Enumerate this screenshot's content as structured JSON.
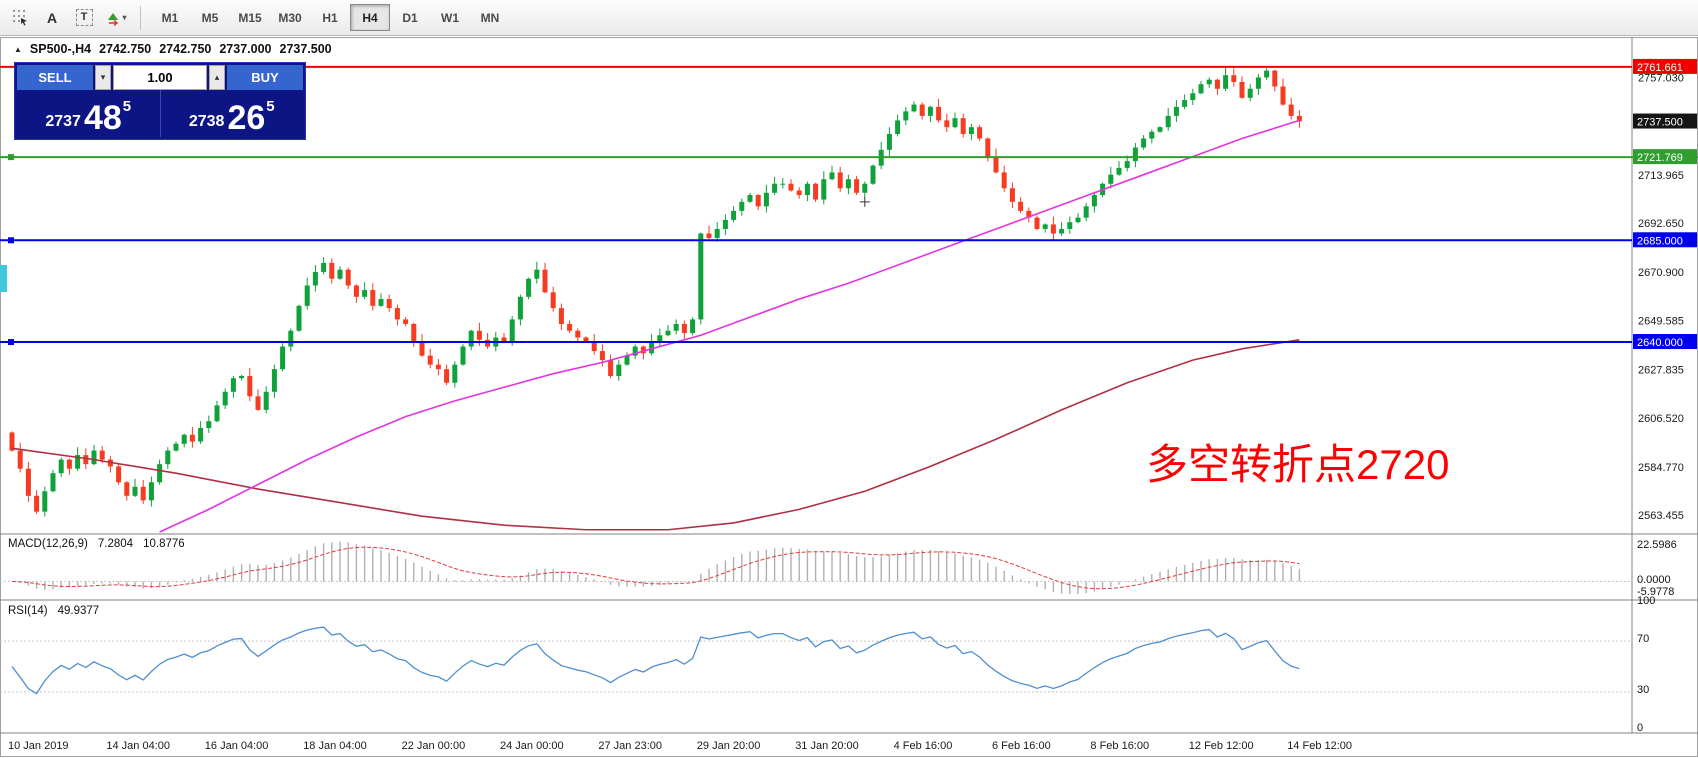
{
  "toolbar": {
    "tool_a": "A",
    "tool_t": "T",
    "dropdown_caret": "▾",
    "timeframes": [
      "M1",
      "M5",
      "M15",
      "M30",
      "H1",
      "H4",
      "D1",
      "W1",
      "MN"
    ],
    "active": "H4"
  },
  "header": {
    "symbol": "SP500-,H4",
    "open": "2742.750",
    "high": "2742.750",
    "low": "2737.000",
    "close": "2737.500"
  },
  "trade_widget": {
    "sell_label": "SELL",
    "buy_label": "BUY",
    "volume": "1.00",
    "icons": {
      "caret_down": "▾",
      "caret_up": "▴"
    },
    "bid": {
      "prefix": "2737",
      "big": "48",
      "sup": "5"
    },
    "ask": {
      "prefix": "2738",
      "big": "26",
      "sup": "5"
    }
  },
  "annotation": {
    "text": "多空转折点2720",
    "color": "#ff0000"
  },
  "colors": {
    "widget_navy": "#0d1585",
    "widget_button_blue": "#3566cf",
    "candle_up": "#0fa13a",
    "candle_down": "#f53b20",
    "ma_fast_magenta": "#e135e1",
    "ma_slow_darkred": "#b03042",
    "hline_red": "#f00000",
    "hline_green": "#2f9e2f",
    "hline_blue": "#0000ee",
    "rsi_blue": "#4f8fd0"
  },
  "chart_data": {
    "type": "candlestick",
    "symbol": "SP500-",
    "timeframe": "H4",
    "first_open": 2600,
    "closes": [
      2592,
      2584,
      2572,
      2565,
      2574,
      2582,
      2588,
      2584,
      2590,
      2586,
      2592,
      2588,
      2585,
      2578,
      2572,
      2576,
      2570,
      2578,
      2586,
      2592,
      2595,
      2599,
      2596,
      2602,
      2605,
      2612,
      2618,
      2624,
      2625,
      2616,
      2610,
      2618,
      2628,
      2638,
      2645,
      2656,
      2665,
      2671,
      2675,
      2668,
      2672,
      2665,
      2660,
      2663,
      2656,
      2659,
      2655,
      2650,
      2648,
      2640,
      2634,
      2630,
      2628,
      2622,
      2630,
      2638,
      2645,
      2641,
      2638,
      2642,
      2640,
      2650,
      2660,
      2668,
      2672,
      2662,
      2655,
      2648,
      2645,
      2642,
      2640,
      2636,
      2632,
      2625,
      2630,
      2634,
      2638,
      2635,
      2640,
      2643,
      2645,
      2648,
      2644,
      2650,
      2688,
      2686,
      2690,
      2694,
      2698,
      2702,
      2705,
      2700,
      2706,
      2710,
      2710,
      2707,
      2705,
      2710,
      2703,
      2712,
      2715,
      2708,
      2712,
      2706,
      2710,
      2718,
      2725,
      2732,
      2738,
      2742,
      2745,
      2740,
      2744,
      2738,
      2735,
      2739,
      2732,
      2735,
      2730,
      2722,
      2715,
      2708,
      2702,
      2698,
      2695,
      2690,
      2692,
      2688,
      2690,
      2693,
      2695,
      2700,
      2705,
      2710,
      2714,
      2717,
      2720,
      2726,
      2730,
      2733,
      2735,
      2740,
      2744,
      2747,
      2750,
      2754,
      2756,
      2752,
      2758,
      2755,
      2748,
      2752,
      2757,
      2760,
      2753,
      2745,
      2740,
      2737.5
    ],
    "up_color": "#0fa13a",
    "down_color": "#f53b20",
    "price_axis": {
      "max": 2774,
      "min": 2556,
      "ticks": [
        "2757.030",
        "2713.965",
        "2692.650",
        "2670.900",
        "2649.585",
        "2627.835",
        "2606.520",
        "2584.770",
        "2563.455"
      ]
    },
    "hlines": [
      {
        "price": 2761.661,
        "badge": "2761.661",
        "color": "#f00000",
        "line": true,
        "full": false,
        "handle": false
      },
      {
        "price": 2737.5,
        "badge": "2737.500",
        "color": "#151515",
        "line": false,
        "full": false,
        "handle": false
      },
      {
        "price": 2721.769,
        "badge": "2721.769",
        "color": "#2f9e2f",
        "line": true,
        "full": true,
        "handle": true
      },
      {
        "price": 2685.0,
        "badge": "2685.000",
        "color": "#0000ee",
        "line": true,
        "full": false,
        "handle": true
      },
      {
        "price": 2640.0,
        "badge": "2640.000",
        "color": "#0000ee",
        "line": true,
        "full": false,
        "handle": true
      }
    ],
    "ma_fast": {
      "color": "#e135e1",
      "points": [
        [
          18,
          2556
        ],
        [
          24,
          2566
        ],
        [
          30,
          2577
        ],
        [
          36,
          2588
        ],
        [
          42,
          2598
        ],
        [
          48,
          2607
        ],
        [
          54,
          2614
        ],
        [
          60,
          2620
        ],
        [
          66,
          2626
        ],
        [
          72,
          2631
        ],
        [
          78,
          2637
        ],
        [
          84,
          2643
        ],
        [
          90,
          2651
        ],
        [
          96,
          2659
        ],
        [
          102,
          2666
        ],
        [
          108,
          2674
        ],
        [
          114,
          2682
        ],
        [
          120,
          2690
        ],
        [
          126,
          2698
        ],
        [
          132,
          2706
        ],
        [
          138,
          2714
        ],
        [
          144,
          2722
        ],
        [
          150,
          2730
        ],
        [
          157,
          2738
        ]
      ]
    },
    "ma_slow": {
      "color": "#b03042",
      "points": [
        [
          0,
          2593
        ],
        [
          10,
          2588
        ],
        [
          20,
          2582
        ],
        [
          30,
          2575
        ],
        [
          40,
          2569
        ],
        [
          50,
          2563
        ],
        [
          60,
          2559
        ],
        [
          70,
          2557
        ],
        [
          80,
          2557
        ],
        [
          88,
          2560
        ],
        [
          96,
          2566
        ],
        [
          104,
          2574
        ],
        [
          112,
          2585
        ],
        [
          120,
          2597
        ],
        [
          128,
          2610
        ],
        [
          136,
          2622
        ],
        [
          144,
          2632
        ],
        [
          150,
          2637
        ],
        [
          157,
          2641
        ]
      ]
    },
    "time_labels": [
      {
        "i": 0,
        "label": "10 Jan 2019"
      },
      {
        "i": 12,
        "label": "14 Jan 04:00"
      },
      {
        "i": 24,
        "label": "16 Jan 04:00"
      },
      {
        "i": 36,
        "label": "18 Jan 04:00"
      },
      {
        "i": 48,
        "label": "22 Jan 00:00"
      },
      {
        "i": 60,
        "label": "24 Jan 00:00"
      },
      {
        "i": 72,
        "label": "27 Jan 23:00"
      },
      {
        "i": 84,
        "label": "29 Jan 20:00"
      },
      {
        "i": 96,
        "label": "31 Jan 20:00"
      },
      {
        "i": 108,
        "label": "4 Feb 16:00"
      },
      {
        "i": 120,
        "label": "6 Feb 16:00"
      },
      {
        "i": 132,
        "label": "8 Feb 16:00"
      },
      {
        "i": 144,
        "label": "12 Feb 12:00"
      },
      {
        "i": 156,
        "label": "14 Feb 12:00"
      }
    ],
    "indicators": {
      "macd": {
        "label": "MACD(12,26,9)",
        "value_main": "7.2804",
        "value_signal": "10.8776",
        "fast": 12,
        "slow": 26,
        "signal": 9,
        "axis": {
          "max_label": "22.5986",
          "zero_label": "0.0000",
          "min_label": "-5.9778",
          "vmax": 23,
          "vmin": -8
        },
        "hist_color": "#b0b0b0",
        "signal_color": "#e23b3b"
      },
      "rsi": {
        "label": "RSI(14)",
        "value": "49.9377",
        "period": 14,
        "color": "#4f8fd0",
        "levels": [
          "100",
          "70",
          "30",
          "0"
        ],
        "level_lines": [
          70,
          30
        ]
      }
    }
  }
}
